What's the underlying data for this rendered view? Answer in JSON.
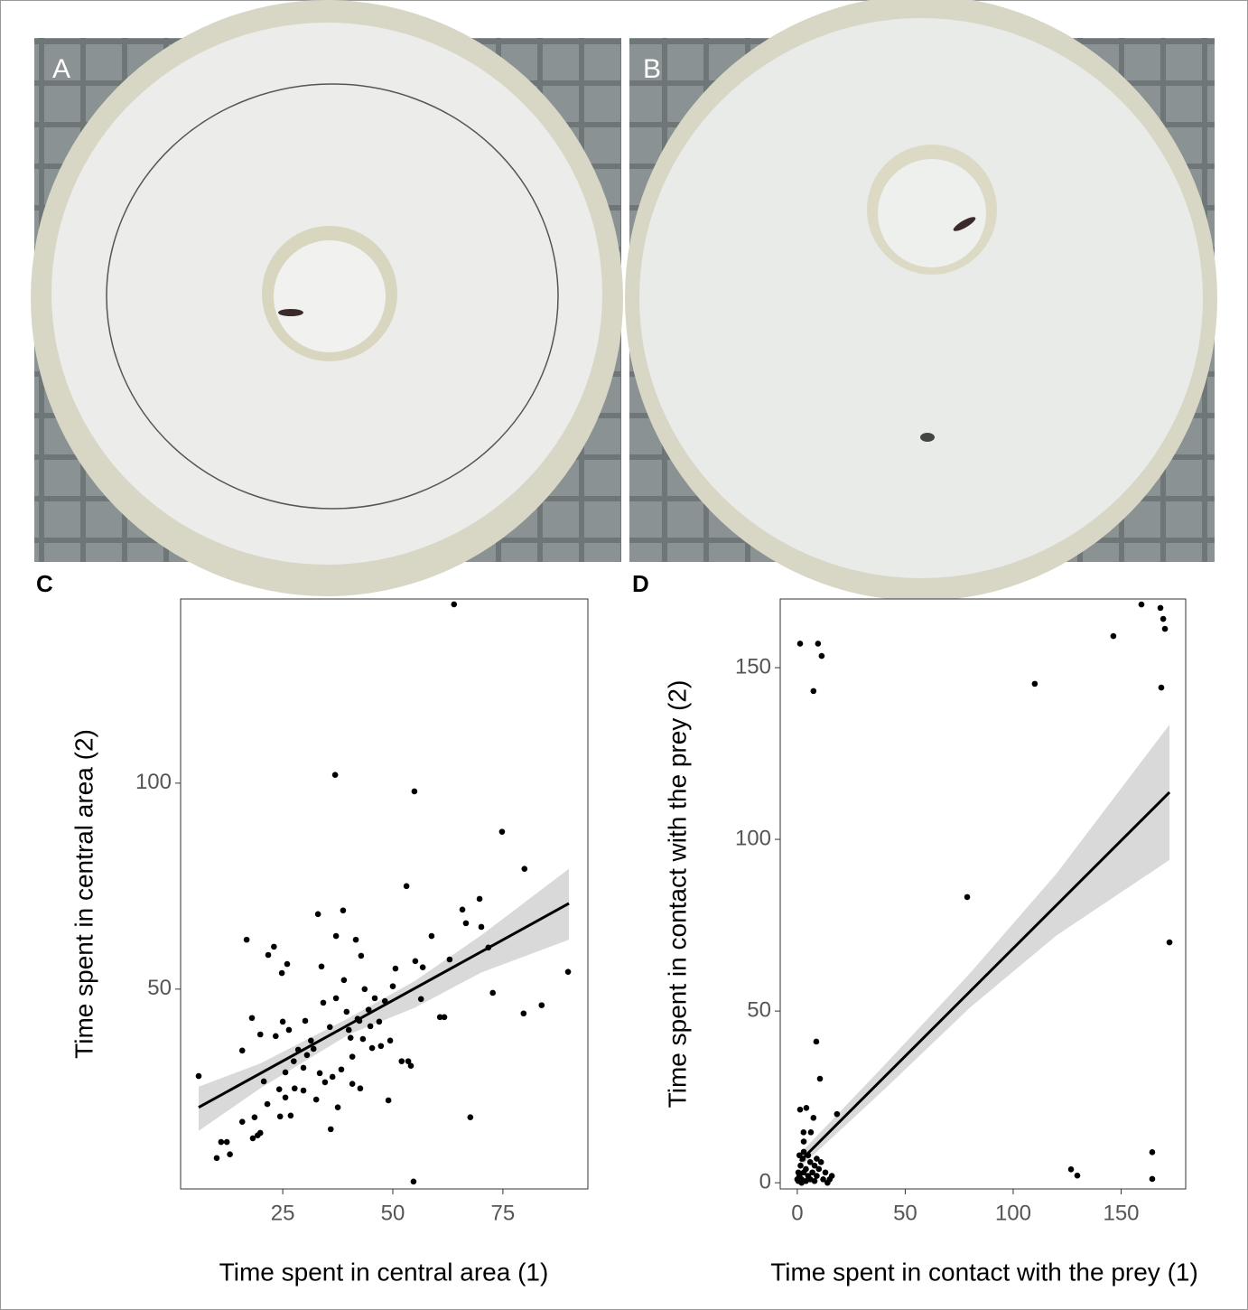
{
  "photo_labels": [
    "A",
    "B"
  ],
  "chart_data": [
    {
      "type": "scatter",
      "panel": "C",
      "x_label": "Time spent in central area (1)",
      "y_label": "Time spent in central area (2)",
      "xlim": [
        1.8,
        94.3
      ],
      "ylim": [
        1.5,
        144.7
      ],
      "xticks": [
        25,
        50,
        75
      ],
      "yticks": [
        50,
        100
      ],
      "x": [
        5.9,
        10,
        11,
        12.3,
        13,
        15.8,
        15.8,
        16.8,
        18,
        18.2,
        18.6,
        19.3,
        19.9,
        19.9,
        20.7,
        21.5,
        21.7,
        23,
        23.4,
        24.2,
        24.4,
        24.8,
        25,
        25.6,
        25.6,
        26,
        26.4,
        26.8,
        27.5,
        27.7,
        28.5,
        29.7,
        29.7,
        30.1,
        30.5,
        31.4,
        32,
        32.6,
        33,
        33.4,
        33.8,
        34.2,
        34.6,
        35.7,
        35.9,
        36.3,
        36.9,
        37.1,
        37.1,
        37.5,
        38.3,
        38.7,
        38.9,
        39.5,
        40,
        40.4,
        40.8,
        40.8,
        41.6,
        42,
        42.4,
        42.6,
        42.8,
        43.2,
        43.6,
        44.5,
        44.9,
        45.3,
        45.9,
        46.9,
        47.3,
        48.2,
        49,
        49.4,
        50,
        50.6,
        52,
        53.1,
        53.5,
        54.1,
        54.7,
        54.9,
        55.1,
        56.4,
        56.8,
        58.8,
        60.7,
        61.7,
        62.9,
        63.9,
        65.8,
        66.6,
        67.6,
        69.7,
        70.1,
        71.7,
        72.7,
        74.8,
        79.7,
        79.9,
        83.8,
        89.8
      ],
      "values": [
        28.9,
        9,
        12.9,
        12.9,
        9.9,
        35.1,
        17.8,
        62,
        43,
        13.8,
        18.9,
        14.5,
        15.1,
        39,
        27.6,
        22.1,
        58.3,
        60.3,
        38.6,
        25.7,
        19.1,
        53.9,
        42.1,
        29.8,
        23.7,
        56.1,
        40.1,
        19.3,
        32.5,
        25.9,
        35.3,
        30.9,
        25.4,
        42.3,
        34,
        37.5,
        35.5,
        23.2,
        68.2,
        29.6,
        55.5,
        46.7,
        27.4,
        40.8,
        16,
        28.7,
        102,
        62.9,
        47.8,
        21.3,
        30.5,
        69.1,
        52.2,
        44.5,
        40.1,
        38.2,
        33.6,
        27,
        62,
        42.8,
        42.3,
        25.9,
        58.1,
        37.9,
        50,
        45,
        41,
        35.7,
        47.8,
        42.1,
        36.2,
        47.1,
        23,
        37.5,
        50.7,
        55,
        32.5,
        75,
        32.5,
        31.4,
        3.3,
        98,
        56.8,
        47.6,
        55.3,
        62.9,
        43.2,
        43.2,
        57.2,
        143.4,
        69.3,
        66,
        18.9,
        71.9,
        65.1,
        60.1,
        49.1,
        88.2,
        44.1,
        79.2,
        46.1,
        54.2
      ],
      "fit": {
        "x": [
          5.9,
          90
        ],
        "y": [
          21.3,
          70.8
        ]
      },
      "band": {
        "x": [
          5.9,
          20,
          40,
          55,
          70,
          90
        ],
        "lower": [
          15.6,
          26,
          39,
          45.5,
          54,
          62
        ],
        "upper": [
          26.3,
          32,
          43,
          52,
          63,
          79.2
        ]
      },
      "color": "#000",
      "band_color": "#d9d9d9"
    },
    {
      "type": "scatter",
      "panel": "D",
      "x_label": "Time spent in contact with the prey (1)",
      "y_label": "Time spent in contact with the prey (2)",
      "xlim": [
        -7.9,
        179.9
      ],
      "ylim": [
        -1.8,
        170
      ],
      "xticks": [
        0,
        50,
        100,
        150
      ],
      "yticks": [
        0,
        50,
        100,
        150
      ],
      "x": [
        1.3,
        9.6,
        11.3,
        7.5,
        110,
        146.4,
        159.4,
        168.2,
        169.5,
        170.3,
        168.6,
        78.7,
        172.4,
        8.8,
        10.5,
        1.3,
        4.2,
        7.5,
        18.4,
        6.3,
        2.9,
        164.4,
        126.8,
        129.7,
        164.4,
        0.5,
        1,
        2,
        3,
        1.5,
        2.5,
        4,
        5,
        6,
        7,
        8,
        9,
        10,
        11,
        12,
        13,
        15,
        3,
        5,
        0.5,
        1,
        4,
        2,
        6,
        8,
        9,
        14,
        16,
        0,
        3
      ],
      "values": [
        157,
        157,
        153.4,
        143.2,
        145.3,
        159.2,
        168.4,
        167.4,
        164.2,
        161.3,
        144.2,
        83.2,
        70,
        41.1,
        30.3,
        21.3,
        21.8,
        18.9,
        20,
        14.7,
        14.7,
        8.9,
        3.9,
        2.1,
        1.1,
        0.5,
        2,
        1,
        3,
        5,
        7,
        4,
        2,
        1,
        3,
        5,
        2,
        4,
        6,
        1,
        3,
        1,
        9,
        8,
        3,
        8,
        0.5,
        0,
        6,
        0.5,
        7,
        0,
        2,
        1,
        12
      ],
      "fit": {
        "x": [
          1.3,
          172.4
        ],
        "y": [
          6.3,
          113.7
        ]
      },
      "band": {
        "x": [
          1.3,
          40,
          80,
          120,
          172.4
        ],
        "lower": [
          4.5,
          27,
          51,
          72,
          94
        ],
        "upper": [
          8.5,
          34,
          61,
          90,
          133.4
        ]
      },
      "color": "#000",
      "band_color": "#d9d9d9"
    }
  ]
}
